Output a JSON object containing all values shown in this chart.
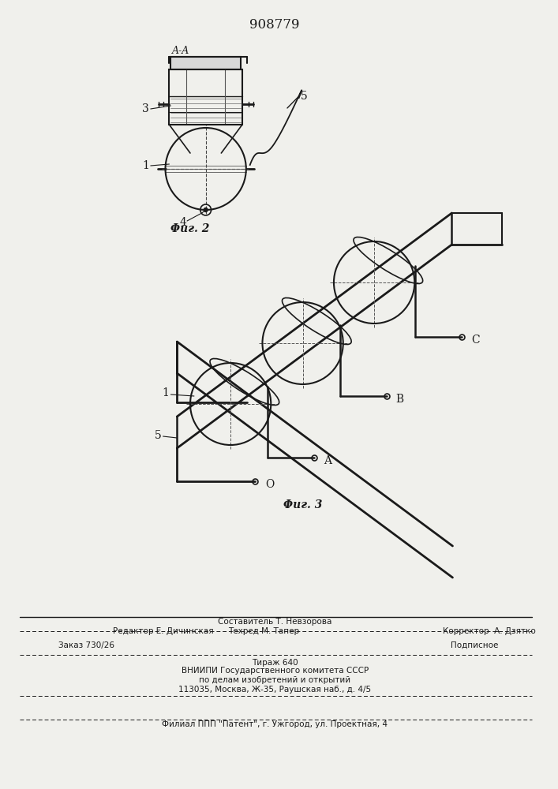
{
  "patent_number": "908779",
  "bg_color": "#f0f0ec",
  "line_color": "#1a1a1a",
  "footer_sestavitel": "Составитель Т. Невзорова",
  "footer_redaktor": "Редактор Е. Дичинская",
  "footer_tehred": "Техред М. Тапер",
  "footer_korrektor": "Корректор  А. Дзятко",
  "footer_zakaz": "Заказ 730/26",
  "footer_tirazh": "Тираж 640",
  "footer_podpisnoe": "Подписное",
  "footer_vniipi": "ВНИИПИ Государственного комитета СССР",
  "footer_po": "по делам изобретений и открытий",
  "footer_addr": "113035, Москва, Ж-35, Раушская наб., д. 4/5",
  "footer_filial": "Филиал ППП \"Патент\", г. Ужгород, ул. Проектная, 4",
  "fig2_caption": "Φиг. 2",
  "fig3_caption": "Φиг. 3"
}
